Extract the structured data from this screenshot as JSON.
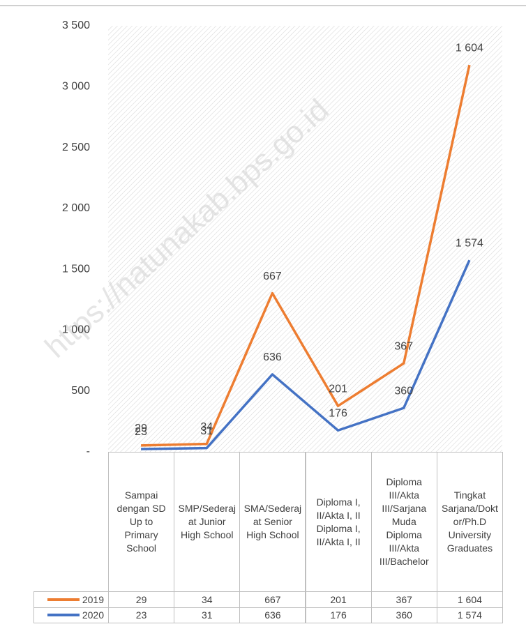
{
  "chart_data": {
    "type": "line",
    "stacked": true,
    "watermark": "https://natunakab.bps.go.id",
    "categories": [
      "Sampai dengan SD Up to Primary School",
      "SMP/Sederajat Junior High School",
      "SMA/Sederajat Senior High School",
      "Diploma I, II/Akta I, II Diploma I, II/Akta I, II",
      "Diploma III/Akta III/Sarjana Muda Diploma III/Akta III/Bachelor",
      "Tingkat Sarjana/Doktor/Ph.D University Graduates"
    ],
    "series": [
      {
        "name": "2019",
        "color": "#ed7d31",
        "values": [
          29,
          34,
          667,
          201,
          367,
          1604
        ],
        "value_labels": [
          "29",
          "34",
          "667",
          "201",
          "367",
          "1 604"
        ]
      },
      {
        "name": "2020",
        "color": "#4472c4",
        "values": [
          23,
          31,
          636,
          176,
          360,
          1574
        ],
        "value_labels": [
          "23",
          "31",
          "636",
          "176",
          "360",
          "1 574"
        ]
      }
    ],
    "ylim": [
      0,
      3500
    ],
    "yticks": [
      {
        "value": 0,
        "label": "-"
      },
      500,
      {
        "value": 1000,
        "label": "1 000"
      },
      {
        "value": 1500,
        "label": "1 500"
      },
      {
        "value": 2000,
        "label": "2 000"
      },
      {
        "value": 2500,
        "label": "2 500"
      },
      {
        "value": 3000,
        "label": "3 000"
      },
      {
        "value": 3500,
        "label": "3 500"
      }
    ],
    "grid": false,
    "legend": "table"
  }
}
